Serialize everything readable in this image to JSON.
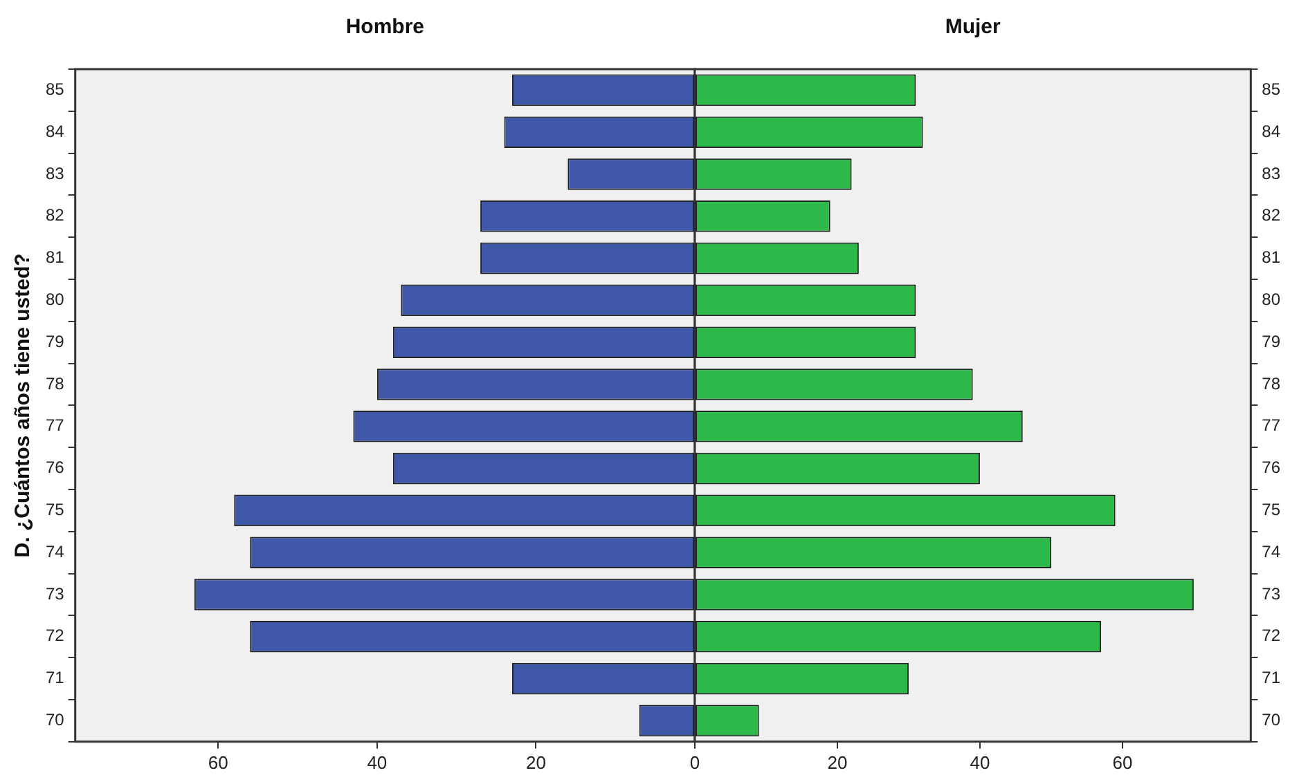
{
  "chart_data": [
    {
      "type": "bar",
      "orientation": "horizontal",
      "title": "Hombre",
      "ylabel": "D. ¿Cuántos años tiene usted?",
      "categories": [
        "85",
        "84",
        "83",
        "82",
        "81",
        "80",
        "79",
        "78",
        "77",
        "76",
        "75",
        "74",
        "73",
        "72",
        "71",
        "70"
      ],
      "values": [
        23,
        24,
        16,
        27,
        27,
        37,
        38,
        40,
        43,
        38,
        58,
        56,
        63,
        56,
        23,
        7
      ],
      "color": "#3f57a9",
      "xlim": [
        78,
        0
      ],
      "xticks": [
        60,
        40,
        20,
        {
          "value": 0,
          "label": null
        }
      ],
      "grid": false
    },
    {
      "type": "bar",
      "orientation": "horizontal",
      "title": "Mujer",
      "categories": [
        "85",
        "84",
        "83",
        "82",
        "81",
        "80",
        "79",
        "78",
        "77",
        "76",
        "75",
        "74",
        "73",
        "72",
        "71",
        "70"
      ],
      "values": [
        31,
        32,
        22,
        19,
        23,
        31,
        31,
        39,
        46,
        40,
        59,
        50,
        70,
        57,
        30,
        9
      ],
      "color": "#2db84a",
      "xlim": [
        0,
        78
      ],
      "xticks": [
        0,
        20,
        40,
        60
      ],
      "grid": false
    }
  ]
}
